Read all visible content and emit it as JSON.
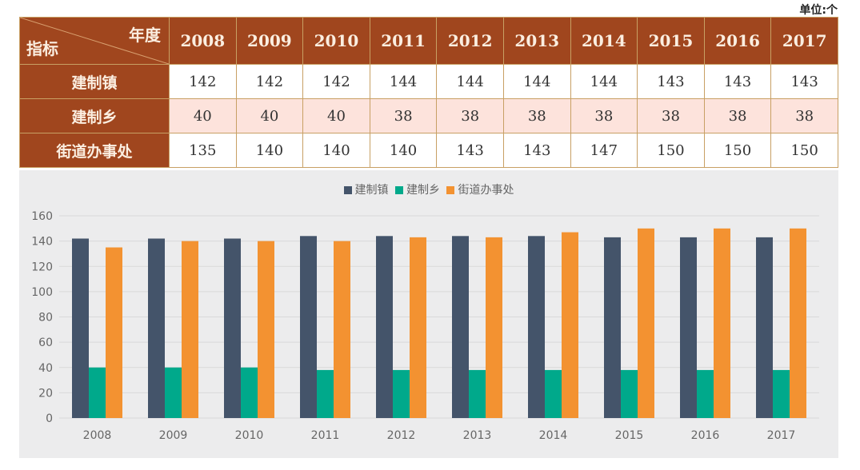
{
  "unit_label": "单位:个",
  "table": {
    "corner_top": "年度",
    "corner_bottom": "指标",
    "years": [
      "2008",
      "2009",
      "2010",
      "2011",
      "2012",
      "2013",
      "2014",
      "2015",
      "2016",
      "2017"
    ],
    "rows": [
      {
        "label": "建制镇",
        "values": [
          "142",
          "142",
          "142",
          "144",
          "144",
          "144",
          "144",
          "143",
          "143",
          "143"
        ]
      },
      {
        "label": "建制乡",
        "values": [
          "40",
          "40",
          "40",
          "38",
          "38",
          "38",
          "38",
          "38",
          "38",
          "38"
        ]
      },
      {
        "label": "街道办事处",
        "values": [
          "135",
          "140",
          "140",
          "140",
          "143",
          "143",
          "147",
          "150",
          "150",
          "150"
        ]
      }
    ]
  },
  "chart_data": {
    "type": "bar",
    "title": "",
    "xlabel": "",
    "ylabel": "",
    "categories": [
      "2008",
      "2009",
      "2010",
      "2011",
      "2012",
      "2013",
      "2014",
      "2015",
      "2016",
      "2017"
    ],
    "series": [
      {
        "name": "建制镇",
        "color": "#44546a",
        "values": [
          142,
          142,
          142,
          144,
          144,
          144,
          144,
          143,
          143,
          143
        ]
      },
      {
        "name": "建制乡",
        "color": "#00a98b",
        "values": [
          40,
          40,
          40,
          38,
          38,
          38,
          38,
          38,
          38,
          38
        ]
      },
      {
        "name": "街道办事处",
        "color": "#f39231",
        "values": [
          135,
          140,
          140,
          140,
          143,
          143,
          147,
          150,
          150,
          150
        ]
      }
    ],
    "ylim": [
      0,
      160
    ],
    "yticks": [
      0,
      20,
      40,
      60,
      80,
      100,
      120,
      140,
      160
    ],
    "grid": true,
    "legend_position": "top-center"
  }
}
